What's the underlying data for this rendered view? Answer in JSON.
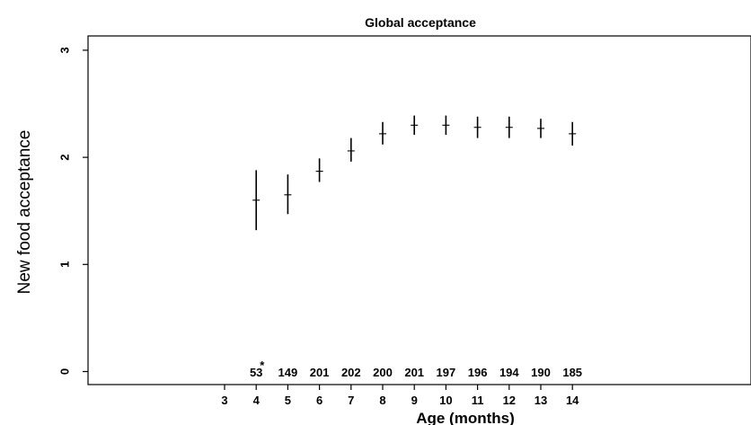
{
  "chart_data": {
    "type": "scatter",
    "title": "Global acceptance",
    "xlabel": "Age (months)",
    "ylabel": "New food acceptance",
    "xlim": [
      1,
      14
    ],
    "ylim": [
      0,
      3
    ],
    "x_ticks": [
      3,
      4,
      5,
      6,
      7,
      8,
      9,
      10,
      11,
      12,
      13,
      14
    ],
    "y_ticks": [
      0,
      1,
      2,
      3
    ],
    "grid": false,
    "legend": "none",
    "series": [
      {
        "points": [
          {
            "x": 4,
            "y": 1.6,
            "low": 1.32,
            "high": 1.88
          },
          {
            "x": 5,
            "y": 1.65,
            "low": 1.47,
            "high": 1.84
          },
          {
            "x": 6,
            "y": 1.87,
            "low": 1.77,
            "high": 1.99
          },
          {
            "x": 7,
            "y": 2.06,
            "low": 1.96,
            "high": 2.18
          },
          {
            "x": 8,
            "y": 2.22,
            "low": 2.12,
            "high": 2.33
          },
          {
            "x": 9,
            "y": 2.3,
            "low": 2.21,
            "high": 2.39
          },
          {
            "x": 10,
            "y": 2.3,
            "low": 2.21,
            "high": 2.39
          },
          {
            "x": 11,
            "y": 2.28,
            "low": 2.18,
            "high": 2.38
          },
          {
            "x": 12,
            "y": 2.28,
            "low": 2.18,
            "high": 2.38
          },
          {
            "x": 13,
            "y": 2.27,
            "low": 2.18,
            "high": 2.36
          },
          {
            "x": 14,
            "y": 2.22,
            "low": 2.11,
            "high": 2.33
          }
        ]
      }
    ],
    "sample_sizes": [
      {
        "x": 4,
        "n": "53"
      },
      {
        "x": 5,
        "n": "149"
      },
      {
        "x": 6,
        "n": "201"
      },
      {
        "x": 7,
        "n": "202"
      },
      {
        "x": 8,
        "n": "200"
      },
      {
        "x": 9,
        "n": "201"
      },
      {
        "x": 10,
        "n": "197"
      },
      {
        "x": 11,
        "n": "196"
      },
      {
        "x": 12,
        "n": "194"
      },
      {
        "x": 13,
        "n": "190"
      },
      {
        "x": 14,
        "n": "185"
      }
    ],
    "annotation": "*",
    "annotation_x": 4.3
  }
}
